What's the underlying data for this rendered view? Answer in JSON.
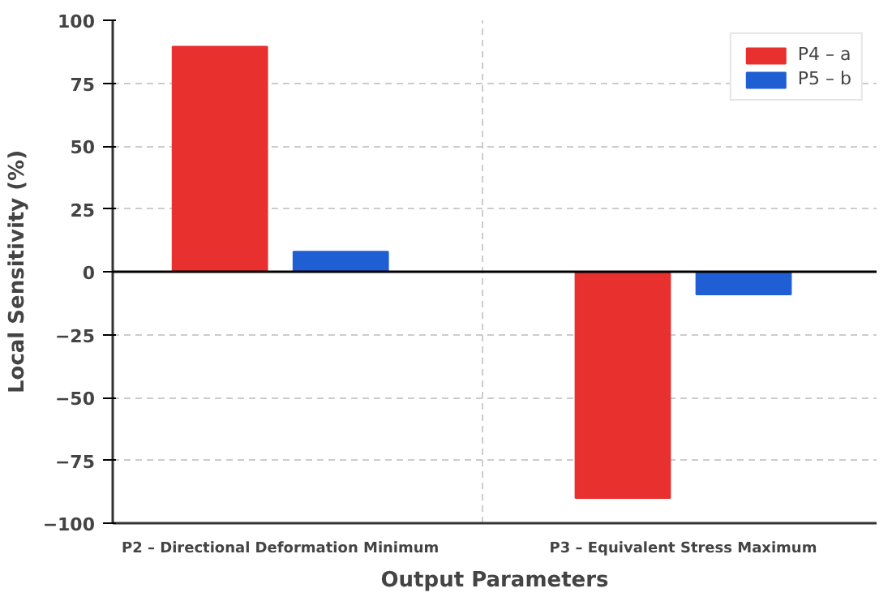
{
  "chart_data": {
    "type": "bar",
    "xlabel": "Output Parameters",
    "ylabel": "Local Sensitivity (%)",
    "categories": [
      "P2 – Directional Deformation Minimum",
      "P3 – Equivalent Stress Maximum"
    ],
    "series": [
      {
        "name": "P4 – a",
        "color": "#e8302e",
        "values": [
          89.5,
          -90
        ]
      },
      {
        "name": "P5 – b",
        "color": "#1f5fd3",
        "values": [
          8,
          -9
        ]
      }
    ],
    "ylim": [
      -100,
      100
    ],
    "yticks": [
      -100,
      -75,
      -50,
      -25,
      0,
      25,
      50,
      75,
      100
    ],
    "ref_lines": [
      {
        "axis": "y",
        "value": 0,
        "color": "#000000",
        "line_style": "solid"
      }
    ],
    "grid": true,
    "legend": "top right"
  }
}
